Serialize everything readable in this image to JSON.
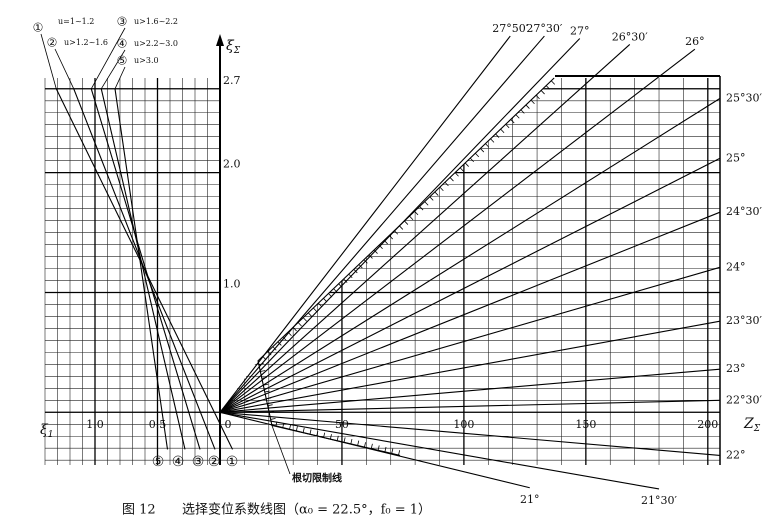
{
  "caption": {
    "number": "图 12",
    "text": "选择变位系数线图（α₀ = 22.5°，f₀ = 1）"
  },
  "chart_data": [
    {
      "type": "line",
      "xlabel": {
        "symbol": "ξ",
        "sub": "1"
      },
      "xlim": [
        1.4,
        0
      ],
      "xticks": [
        {
          "value": 1,
          "label": "1.0"
        },
        0.5,
        0
      ],
      "ylim": [
        -0.44,
        2.79
      ],
      "minor_grid": {
        "x_step": 0.1,
        "y_step": 0.1
      },
      "color": "#000000",
      "series": [
        {
          "marker": "①",
          "name": "u=1~1.2",
          "x": [
            1.31,
            -0.1
          ],
          "values": [
            2.7,
            -0.31
          ]
        },
        {
          "marker": "②",
          "name": "u>1.2~1.6",
          "x": [
            1.17,
            0.04
          ],
          "values": [
            2.7,
            -0.31
          ]
        },
        {
          "marker": "③",
          "name": "u>1.6~2.2",
          "x": [
            1.03,
            0.16
          ],
          "values": [
            2.7,
            -0.31
          ]
        },
        {
          "marker": "④",
          "name": "u>2.2~3.0",
          "x": [
            0.95,
            0.28
          ],
          "values": [
            2.7,
            -0.31
          ]
        },
        {
          "marker": "⑤",
          "name": "u>3.0",
          "x": [
            0.84,
            0.42
          ],
          "values": [
            2.7,
            -0.31
          ]
        }
      ]
    },
    {
      "type": "line",
      "xlabel": {
        "symbol": "Z",
        "sub": "Σ"
      },
      "ylabel": {
        "symbol": "ξ",
        "sub": "Σ"
      },
      "xlim": [
        0,
        205
      ],
      "xticks": [
        50,
        100,
        150,
        200
      ],
      "ylim": [
        -0.44,
        2.79
      ],
      "yticks": [
        {
          "value": 1,
          "label": "1.0"
        },
        {
          "value": 2,
          "label": "2.0"
        },
        2.7
      ],
      "minor_grid": {
        "x_step": 10,
        "y_step": 0.1
      },
      "color": "#000000",
      "series": [
        {
          "name": "27°50′",
          "x": [
            0,
            119
          ],
          "values": [
            0,
            3.14
          ]
        },
        {
          "name": "27°30′",
          "x": [
            0,
            133
          ],
          "values": [
            0,
            3.14
          ]
        },
        {
          "name": "27°",
          "x": [
            0,
            147.5
          ],
          "values": [
            0,
            3.12
          ]
        },
        {
          "name": "26°30′",
          "x": [
            0,
            168
          ],
          "values": [
            0,
            3.07
          ]
        },
        {
          "name": "26°",
          "x": [
            0,
            194.7
          ],
          "values": [
            0,
            3.03
          ]
        },
        {
          "name": "25°30′",
          "x": [
            0,
            205
          ],
          "values": [
            0,
            2.62
          ]
        },
        {
          "name": "25°",
          "x": [
            0,
            205
          ],
          "values": [
            0,
            2.12
          ]
        },
        {
          "name": "24°30′",
          "x": [
            0,
            205
          ],
          "values": [
            0,
            1.67
          ]
        },
        {
          "name": "24°",
          "x": [
            0,
            205
          ],
          "values": [
            0,
            1.21
          ]
        },
        {
          "name": "23°30′",
          "x": [
            0,
            205
          ],
          "values": [
            0,
            0.76
          ]
        },
        {
          "name": "23°",
          "x": [
            0,
            205
          ],
          "values": [
            0,
            0.36
          ]
        },
        {
          "name": "22°30′",
          "x": [
            0,
            205
          ],
          "values": [
            0,
            0.1
          ]
        },
        {
          "name": "22°",
          "x": [
            0,
            205
          ],
          "values": [
            0,
            -0.36
          ]
        },
        {
          "name": "21°30′",
          "x": [
            0,
            180
          ],
          "values": [
            0,
            -0.64
          ]
        },
        {
          "name": "21°",
          "x": [
            0,
            127
          ],
          "values": [
            0,
            -0.63
          ]
        }
      ],
      "limit_line": {
        "label": "根切限制线",
        "x": [
          137,
          15.6,
          21.3,
          73.8
        ],
        "values": [
          2.79,
          0.43,
          -0.11,
          -0.36
        ]
      }
    }
  ]
}
